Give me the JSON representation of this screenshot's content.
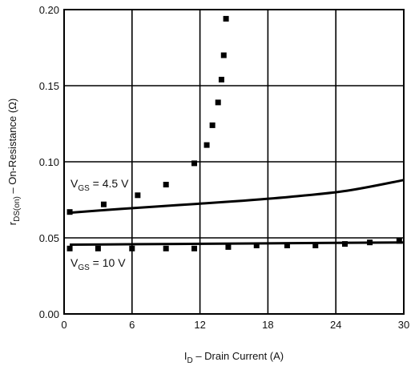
{
  "chart_data": {
    "type": "scatter",
    "xlim": [
      0,
      30
    ],
    "ylim": [
      0,
      0.2
    ],
    "x_ticks": [
      "0",
      "6",
      "12",
      "18",
      "24",
      "30"
    ],
    "y_ticks": [
      "0.00",
      "0.05",
      "0.10",
      "0.15",
      "0.20"
    ],
    "xlabel": {
      "main": "I",
      "sub": "D",
      "rest": " – Drain Current (A)"
    },
    "ylabel": {
      "main": "r",
      "sub": "DS(on)",
      "rest": " – On-Resistance (Ω)"
    },
    "grid": true,
    "series": [
      {
        "label": {
          "main": "V",
          "sub": "GS",
          "rest": " = 4.5 V"
        },
        "curve": {
          "x": [
            0.5,
            5,
            10,
            15,
            20,
            25,
            30
          ],
          "y": [
            0.0665,
            0.069,
            0.0715,
            0.074,
            0.077,
            0.081,
            0.088
          ]
        },
        "points": {
          "x": [
            0.5,
            3.5,
            6.5,
            9,
            11.5,
            12.6,
            13.1,
            13.6,
            13.9,
            14.1,
            14.3
          ],
          "y": [
            0.067,
            0.072,
            0.078,
            0.085,
            0.099,
            0.111,
            0.124,
            0.139,
            0.154,
            0.17,
            0.194
          ]
        }
      },
      {
        "label": {
          "main": "V",
          "sub": "GS",
          "rest": " = 10 V"
        },
        "curve": {
          "x": [
            0.5,
            10,
            20,
            30
          ],
          "y": [
            0.0455,
            0.046,
            0.0465,
            0.047
          ]
        },
        "points": {
          "x": [
            0.5,
            3,
            6,
            9,
            11.5,
            14.5,
            17,
            19.7,
            22.2,
            24.8,
            27,
            29.6
          ],
          "y": [
            0.043,
            0.043,
            0.043,
            0.043,
            0.043,
            0.044,
            0.045,
            0.045,
            0.045,
            0.046,
            0.047,
            0.048
          ]
        }
      }
    ]
  }
}
